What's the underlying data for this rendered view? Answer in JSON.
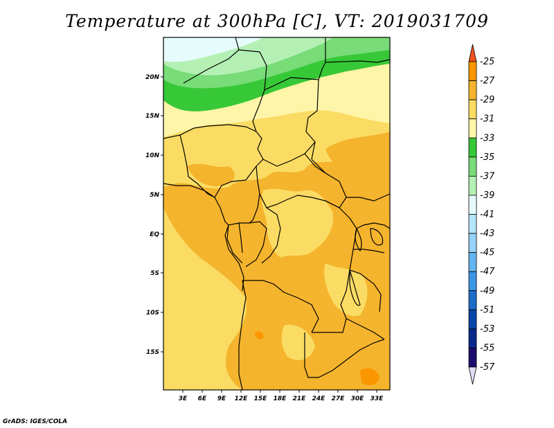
{
  "title": "Temperature at 300hPa [C], VT: 2019031709",
  "credit": "GrADS: IGES/COLA",
  "map": {
    "lon_labels": [
      "3E",
      "6E",
      "9E",
      "12E",
      "15E",
      "18E",
      "21E",
      "24E",
      "27E",
      "30E",
      "33E"
    ],
    "lat_labels": [
      "20N",
      "15N",
      "10N",
      "5N",
      "EQ",
      "5S",
      "10S",
      "15S"
    ]
  },
  "colorbar": {
    "labels": [
      "-25",
      "-27",
      "-29",
      "-31",
      "-33",
      "-35",
      "-37",
      "-39",
      "-41",
      "-43",
      "-45",
      "-47",
      "-49",
      "-51",
      "-53",
      "-55",
      "-57"
    ],
    "colors": [
      "#f0501e",
      "#fa9600",
      "#f5b42d",
      "#fadc64",
      "#fff5a8",
      "#37c837",
      "#78dc78",
      "#b4f0b4",
      "#e6fcfc",
      "#b4e6fa",
      "#96d2fa",
      "#64b4f0",
      "#3c96e6",
      "#1e6ec8",
      "#0a46aa",
      "#08288c",
      "#1e0a6e",
      "#dcdcf5"
    ]
  }
}
